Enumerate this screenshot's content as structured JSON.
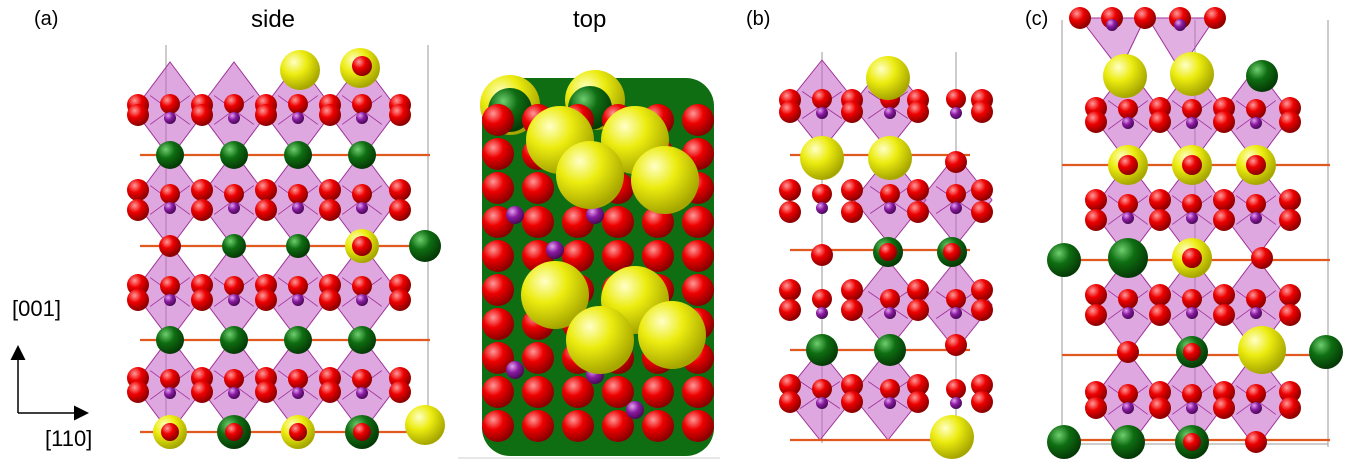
{
  "labels": {
    "panel_a": "(a)",
    "panel_b": "(b)",
    "panel_c": "(c)",
    "side": "side",
    "top": "top",
    "axis_vertical": "[001]",
    "axis_horizontal": "[110]"
  },
  "colors": {
    "oxygen": "#ee0000",
    "metal": "#8a1aa0",
    "yellow_atom": "#ecec10",
    "green_atom": "#0f6e12",
    "polyhedron": "#c45fc4",
    "bond": "#e05a20",
    "cell_line": "#9a9a9a"
  }
}
